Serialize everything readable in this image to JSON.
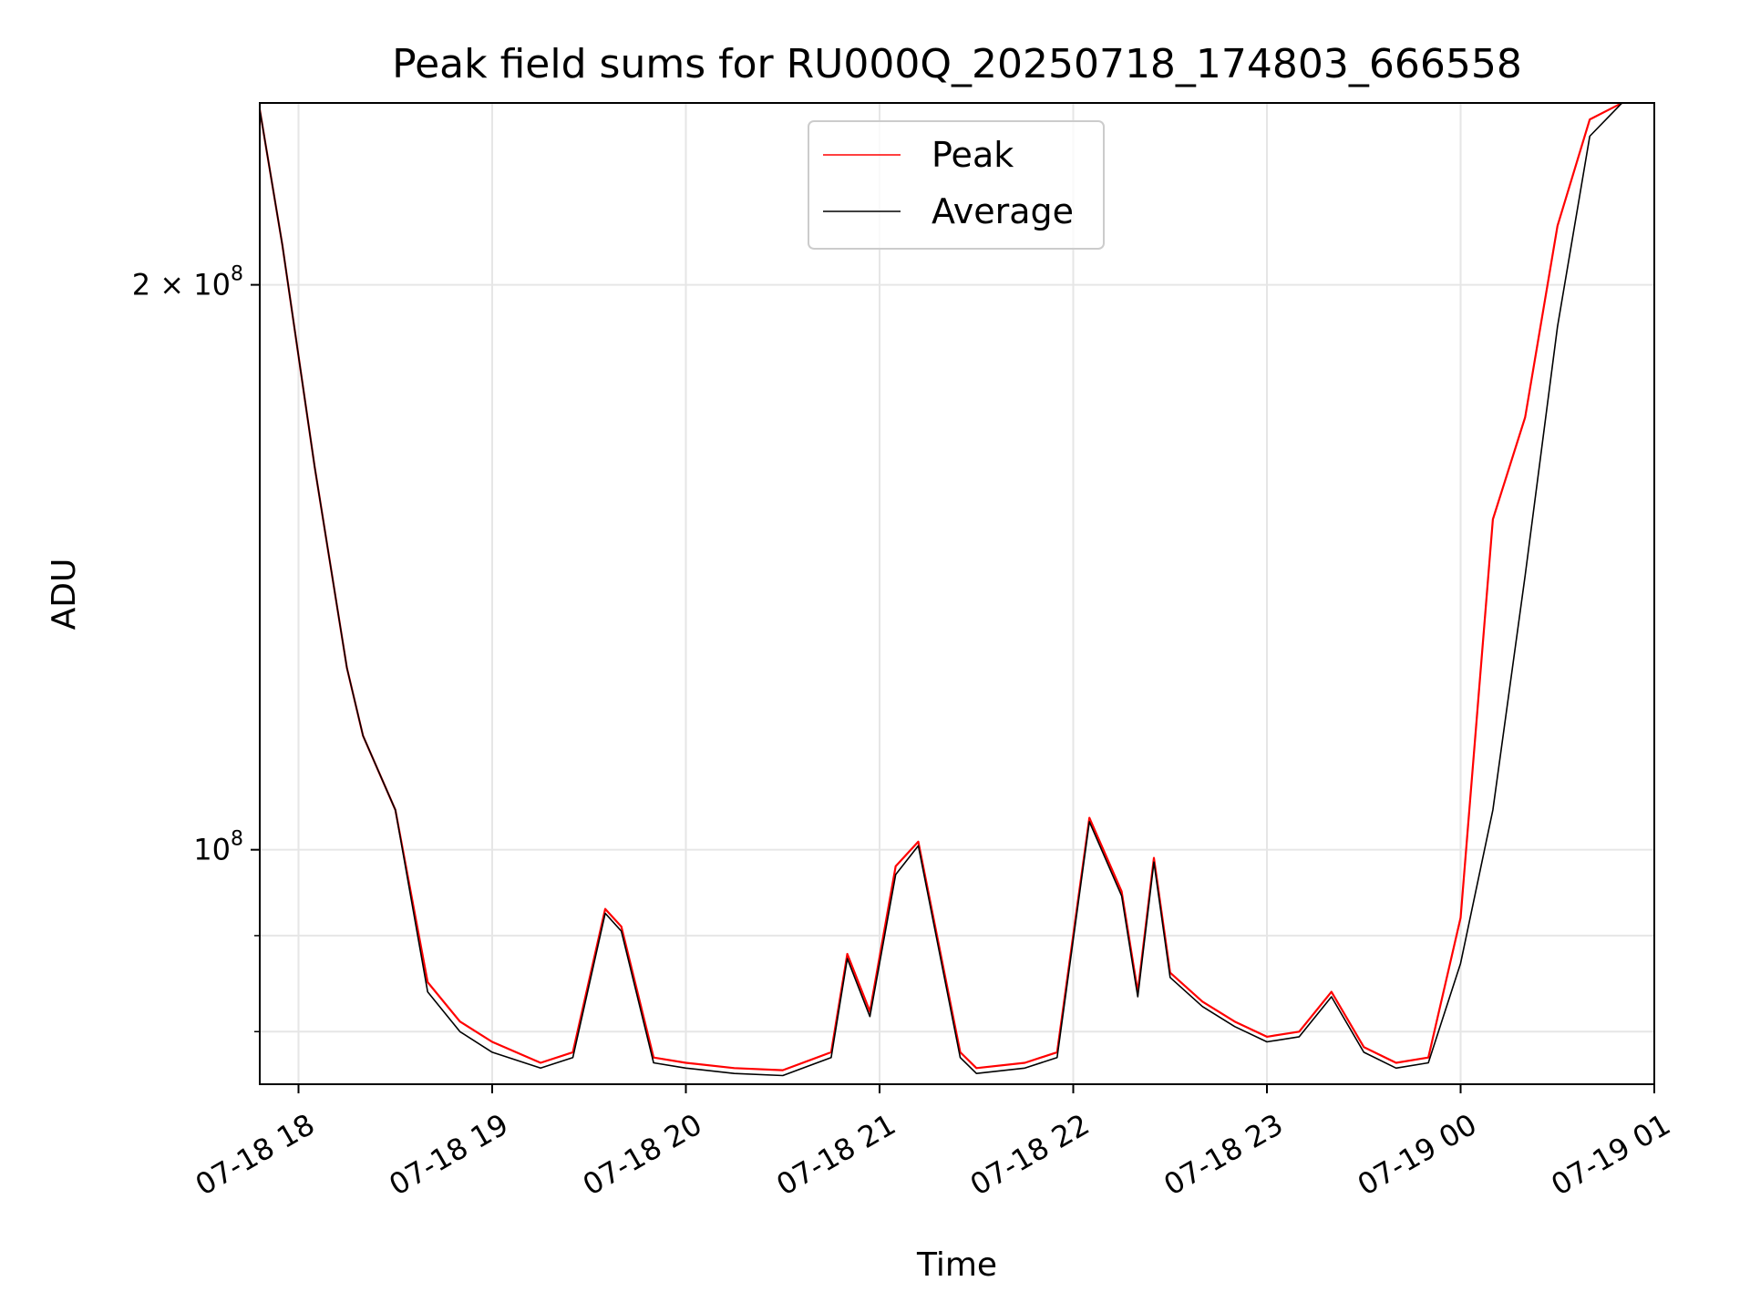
{
  "chart_data": {
    "type": "line",
    "title": "Peak field sums for RU000Q_20250718_174803_666558",
    "xlabel": "Time",
    "ylabel": "ADU",
    "y_scale": "log",
    "grid": true,
    "legend_position": "upper-center",
    "xlim": [
      "2025-07-18 17:48",
      "2025-07-19 01:00"
    ],
    "ylim": [
      75000000,
      250000000
    ],
    "x_ticks": [
      "07-18 18",
      "07-18 19",
      "07-18 20",
      "07-18 21",
      "07-18 22",
      "07-18 23",
      "07-19 00",
      "07-19 01"
    ],
    "y_ticks": [
      {
        "value": 100000000,
        "label": "10",
        "exp": "8",
        "mantissa": ""
      },
      {
        "value": 200000000,
        "label": "2 × 10",
        "exp": "8",
        "mantissa": "2"
      }
    ],
    "series": [
      {
        "name": "Peak",
        "color": "#ff0000",
        "x": [
          "2025-07-18 17:48",
          "2025-07-18 17:55",
          "2025-07-18 18:05",
          "2025-07-18 18:15",
          "2025-07-18 18:20",
          "2025-07-18 18:30",
          "2025-07-18 18:40",
          "2025-07-18 18:50",
          "2025-07-18 19:00",
          "2025-07-18 19:15",
          "2025-07-18 19:25",
          "2025-07-18 19:35",
          "2025-07-18 19:40",
          "2025-07-18 19:50",
          "2025-07-18 20:00",
          "2025-07-18 20:15",
          "2025-07-18 20:30",
          "2025-07-18 20:45",
          "2025-07-18 20:50",
          "2025-07-18 20:57",
          "2025-07-18 21:05",
          "2025-07-18 21:12",
          "2025-07-18 21:25",
          "2025-07-18 21:30",
          "2025-07-18 21:45",
          "2025-07-18 21:55",
          "2025-07-18 22:05",
          "2025-07-18 22:15",
          "2025-07-18 22:20",
          "2025-07-18 22:25",
          "2025-07-18 22:30",
          "2025-07-18 22:40",
          "2025-07-18 22:50",
          "2025-07-18 23:00",
          "2025-07-18 23:10",
          "2025-07-18 23:20",
          "2025-07-18 23:30",
          "2025-07-18 23:40",
          "2025-07-18 23:50",
          "2025-07-19 00:00",
          "2025-07-19 00:10",
          "2025-07-19 00:20",
          "2025-07-19 00:30",
          "2025-07-19 00:40",
          "2025-07-19 00:50"
        ],
        "values": [
          248000000,
          210000000,
          160000000,
          125000000,
          115000000,
          105000000,
          85000000,
          81000000,
          79000000,
          77000000,
          78000000,
          93000000,
          91000000,
          77500000,
          77000000,
          76500000,
          76300000,
          78000000,
          88000000,
          82000000,
          98000000,
          101000000,
          78000000,
          76500000,
          77000000,
          78000000,
          104000000,
          95000000,
          84000000,
          99000000,
          86000000,
          83000000,
          81000000,
          79500000,
          80000000,
          84000000,
          78500000,
          77000000,
          77500000,
          92000000,
          150000000,
          170000000,
          215000000,
          245000000,
          250000000
        ]
      },
      {
        "name": "Average",
        "color": "#000000",
        "x": [
          "2025-07-18 17:48",
          "2025-07-18 17:55",
          "2025-07-18 18:05",
          "2025-07-18 18:15",
          "2025-07-18 18:20",
          "2025-07-18 18:30",
          "2025-07-18 18:40",
          "2025-07-18 18:50",
          "2025-07-18 19:00",
          "2025-07-18 19:15",
          "2025-07-18 19:25",
          "2025-07-18 19:35",
          "2025-07-18 19:40",
          "2025-07-18 19:50",
          "2025-07-18 20:00",
          "2025-07-18 20:15",
          "2025-07-18 20:30",
          "2025-07-18 20:45",
          "2025-07-18 20:50",
          "2025-07-18 20:57",
          "2025-07-18 21:05",
          "2025-07-18 21:12",
          "2025-07-18 21:25",
          "2025-07-18 21:30",
          "2025-07-18 21:45",
          "2025-07-18 21:55",
          "2025-07-18 22:05",
          "2025-07-18 22:15",
          "2025-07-18 22:20",
          "2025-07-18 22:25",
          "2025-07-18 22:30",
          "2025-07-18 22:40",
          "2025-07-18 22:50",
          "2025-07-18 23:00",
          "2025-07-18 23:10",
          "2025-07-18 23:20",
          "2025-07-18 23:30",
          "2025-07-18 23:40",
          "2025-07-18 23:50",
          "2025-07-19 00:00",
          "2025-07-19 00:10",
          "2025-07-19 00:20",
          "2025-07-19 00:30",
          "2025-07-19 00:40",
          "2025-07-19 00:50"
        ],
        "values": [
          248000000,
          210000000,
          160000000,
          125000000,
          115000000,
          105000000,
          84000000,
          80000000,
          78000000,
          76500000,
          77500000,
          92500000,
          90500000,
          77000000,
          76500000,
          76000000,
          75800000,
          77500000,
          87500000,
          81500000,
          97000000,
          100500000,
          77500000,
          76000000,
          76500000,
          77500000,
          103500000,
          94500000,
          83500000,
          98500000,
          85500000,
          82500000,
          80500000,
          79000000,
          79500000,
          83500000,
          78000000,
          76500000,
          77000000,
          87000000,
          105000000,
          140000000,
          190000000,
          240000000,
          250000000
        ]
      }
    ]
  }
}
